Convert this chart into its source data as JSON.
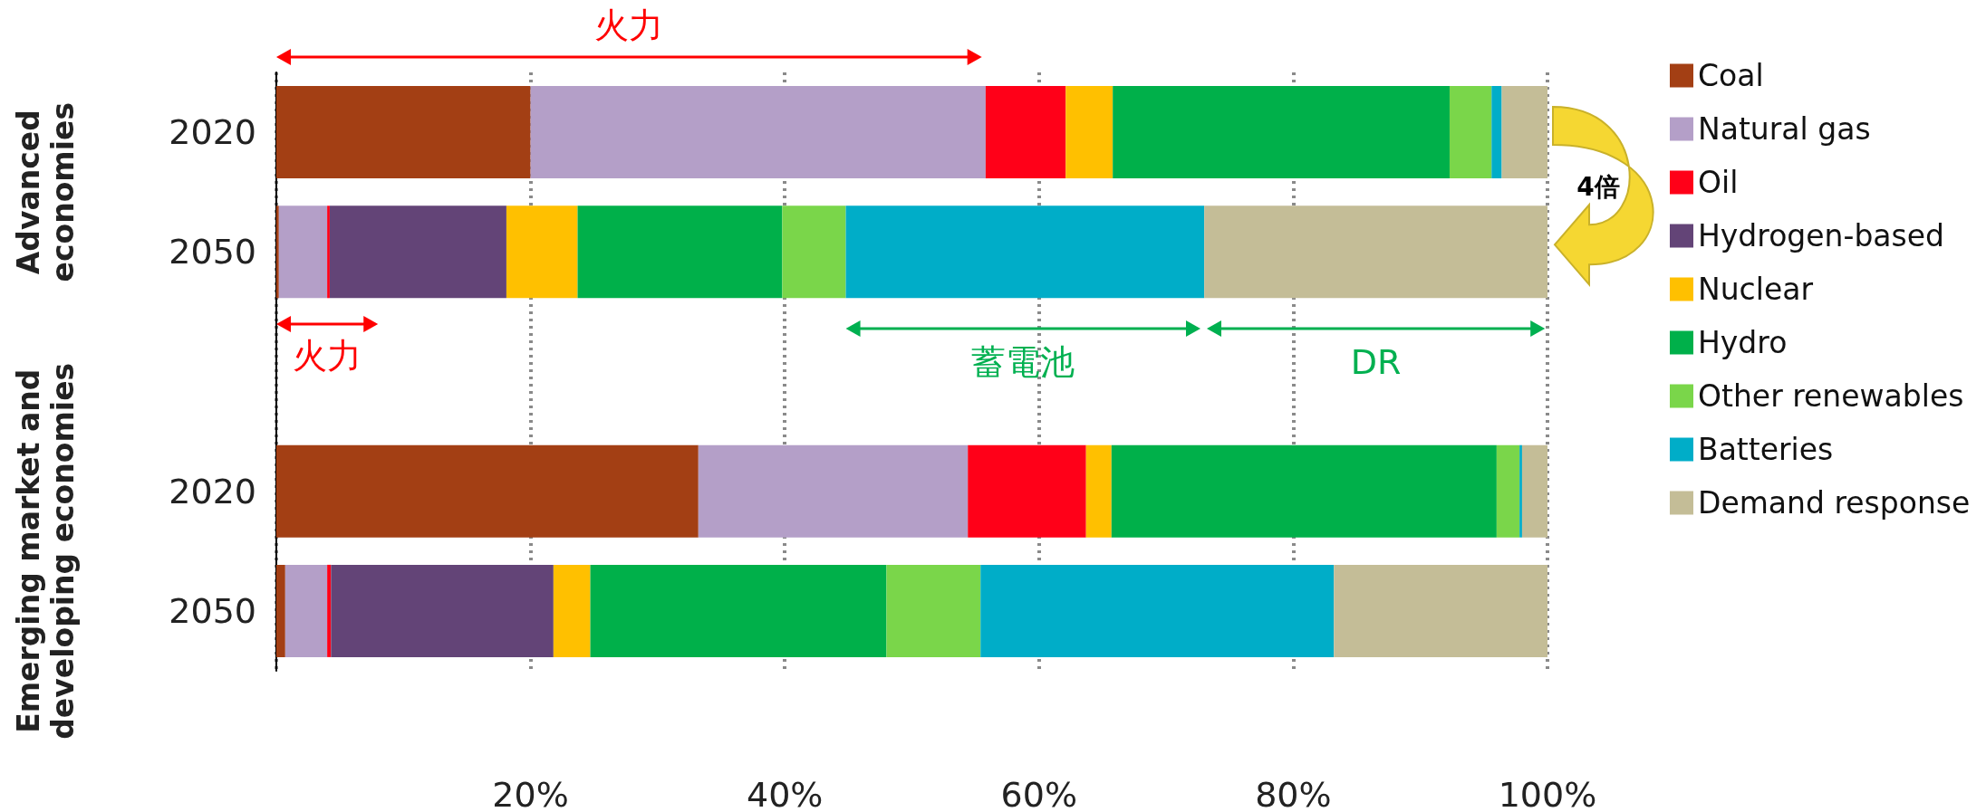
{
  "chart_data": {
    "type": "bar",
    "orientation": "horizontal",
    "stacked": true,
    "categories": [
      "2020",
      "2050",
      null,
      "2020",
      "2050"
    ],
    "series": [
      {
        "name": "Coal",
        "color": "#a33f14",
        "values": [
          20.0,
          0.2,
          null,
          33.2,
          0.7
        ]
      },
      {
        "name": "Natural gas",
        "color": "#b49fc8",
        "values": [
          35.8,
          3.8,
          null,
          21.2,
          3.3
        ]
      },
      {
        "name": "Oil",
        "color": "#ff0018",
        "values": [
          6.3,
          0.2,
          null,
          9.3,
          0.3
        ]
      },
      {
        "name": "Hydrogen-based",
        "color": "#634477",
        "values": [
          0,
          13.9,
          null,
          0,
          17.5
        ]
      },
      {
        "name": "Nuclear",
        "color": "#ffc000",
        "values": [
          3.7,
          5.6,
          null,
          2.0,
          2.9
        ]
      },
      {
        "name": "Hydro",
        "color": "#00b04a",
        "values": [
          26.5,
          16.1,
          null,
          30.3,
          23.3
        ]
      },
      {
        "name": "Other renewables",
        "color": "#7ad64a",
        "values": [
          3.3,
          5.0,
          null,
          1.8,
          7.4
        ]
      },
      {
        "name": "Batteries",
        "color": "#00adc8",
        "values": [
          0.8,
          28.2,
          null,
          0.2,
          27.8
        ]
      },
      {
        "name": "Demand response",
        "color": "#c4bd97",
        "values": [
          3.6,
          27.0,
          null,
          2.0,
          16.8
        ]
      }
    ],
    "xlim": [
      0,
      100
    ],
    "xticks": [
      {
        "value": 0,
        "label": null
      },
      {
        "value": 20,
        "label": "20%"
      },
      {
        "value": 40,
        "label": "40%"
      },
      {
        "value": 60,
        "label": "60%"
      },
      {
        "value": 80,
        "label": "80%"
      },
      {
        "value": 100,
        "label": "100%"
      }
    ],
    "grid": "x",
    "legend": "right",
    "annotations": [
      "Advanced economies",
      "Emerging market and developing economies",
      "火力",
      "火力",
      "蓄電池",
      "DR",
      "4倍"
    ]
  }
}
